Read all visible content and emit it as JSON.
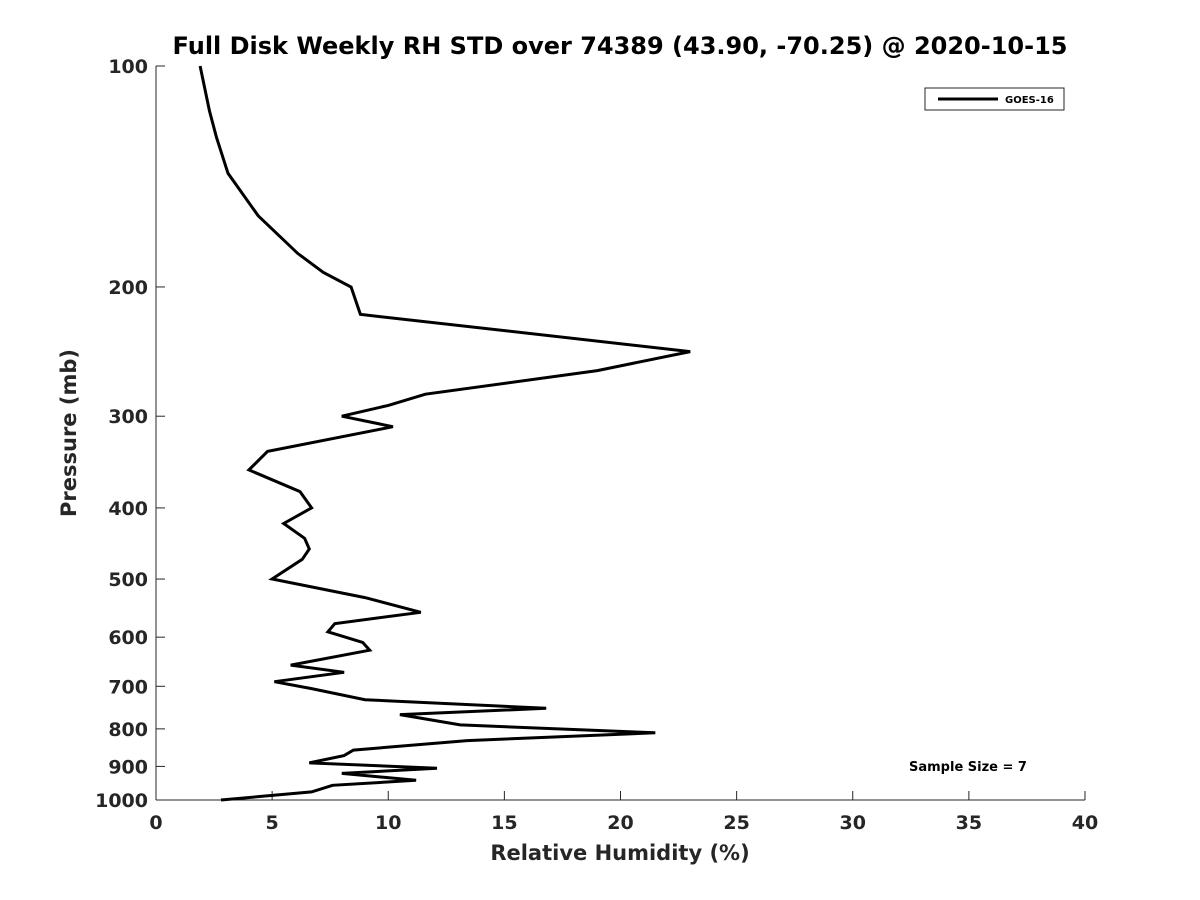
{
  "chart_data": {
    "type": "line",
    "title": "Full Disk Weekly RH STD over 74389 (43.90, -70.25) @ 2020-10-15",
    "xlabel": "Relative Humidity (%)",
    "ylabel": "Pressure (mb)",
    "xlim": [
      0,
      40
    ],
    "ylim": [
      100,
      1000
    ],
    "y_scale": "log",
    "y_reversed": true,
    "x_ticks": [
      0,
      5,
      10,
      15,
      20,
      25,
      30,
      35,
      40
    ],
    "y_ticks": [
      100,
      200,
      300,
      400,
      500,
      600,
      700,
      800,
      900,
      1000
    ],
    "grid": false,
    "legend_position": "top-right",
    "annotation": "Sample Size = 7",
    "series": [
      {
        "name": "GOES-16",
        "color": "#000000",
        "points": [
          [
            1.9,
            100
          ],
          [
            2.3,
            115
          ],
          [
            2.6,
            125
          ],
          [
            3.1,
            140
          ],
          [
            4.4,
            160
          ],
          [
            6.1,
            180
          ],
          [
            7.2,
            191
          ],
          [
            8.4,
            200
          ],
          [
            8.8,
            218
          ],
          [
            23.0,
            245
          ],
          [
            19.0,
            260
          ],
          [
            11.6,
            280
          ],
          [
            10.0,
            290
          ],
          [
            8.0,
            300
          ],
          [
            10.2,
            310
          ],
          [
            4.8,
            335
          ],
          [
            4.0,
            355
          ],
          [
            6.2,
            380
          ],
          [
            6.7,
            400
          ],
          [
            5.5,
            420
          ],
          [
            6.4,
            440
          ],
          [
            6.6,
            455
          ],
          [
            6.3,
            470
          ],
          [
            5.0,
            500
          ],
          [
            9.0,
            530
          ],
          [
            11.4,
            555
          ],
          [
            7.7,
            575
          ],
          [
            7.4,
            590
          ],
          [
            8.9,
            610
          ],
          [
            9.2,
            625
          ],
          [
            5.8,
            655
          ],
          [
            8.1,
            670
          ],
          [
            5.1,
            690
          ],
          [
            6.7,
            705
          ],
          [
            9.0,
            730
          ],
          [
            16.8,
            750
          ],
          [
            10.5,
            765
          ],
          [
            13.1,
            790
          ],
          [
            21.5,
            810
          ],
          [
            13.4,
            830
          ],
          [
            8.5,
            855
          ],
          [
            8.1,
            870
          ],
          [
            6.6,
            890
          ],
          [
            12.1,
            905
          ],
          [
            8.0,
            920
          ],
          [
            11.2,
            940
          ],
          [
            7.6,
            955
          ],
          [
            6.7,
            975
          ],
          [
            2.8,
            1000
          ]
        ]
      }
    ]
  }
}
